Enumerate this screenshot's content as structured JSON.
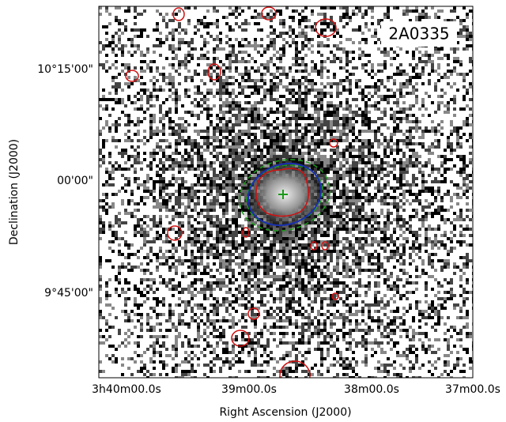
{
  "image": {
    "label": "2A0335",
    "xlabel": "Right Ascension (J2000)",
    "ylabel": "Declination (J2000)",
    "xticks": [
      "3h40m00.0s",
      "39m00.0s",
      "38m00.0s",
      "37m00.0s"
    ],
    "yticks": [
      "10°15'00\"",
      "00'00\"",
      "9°45'00\""
    ]
  }
}
